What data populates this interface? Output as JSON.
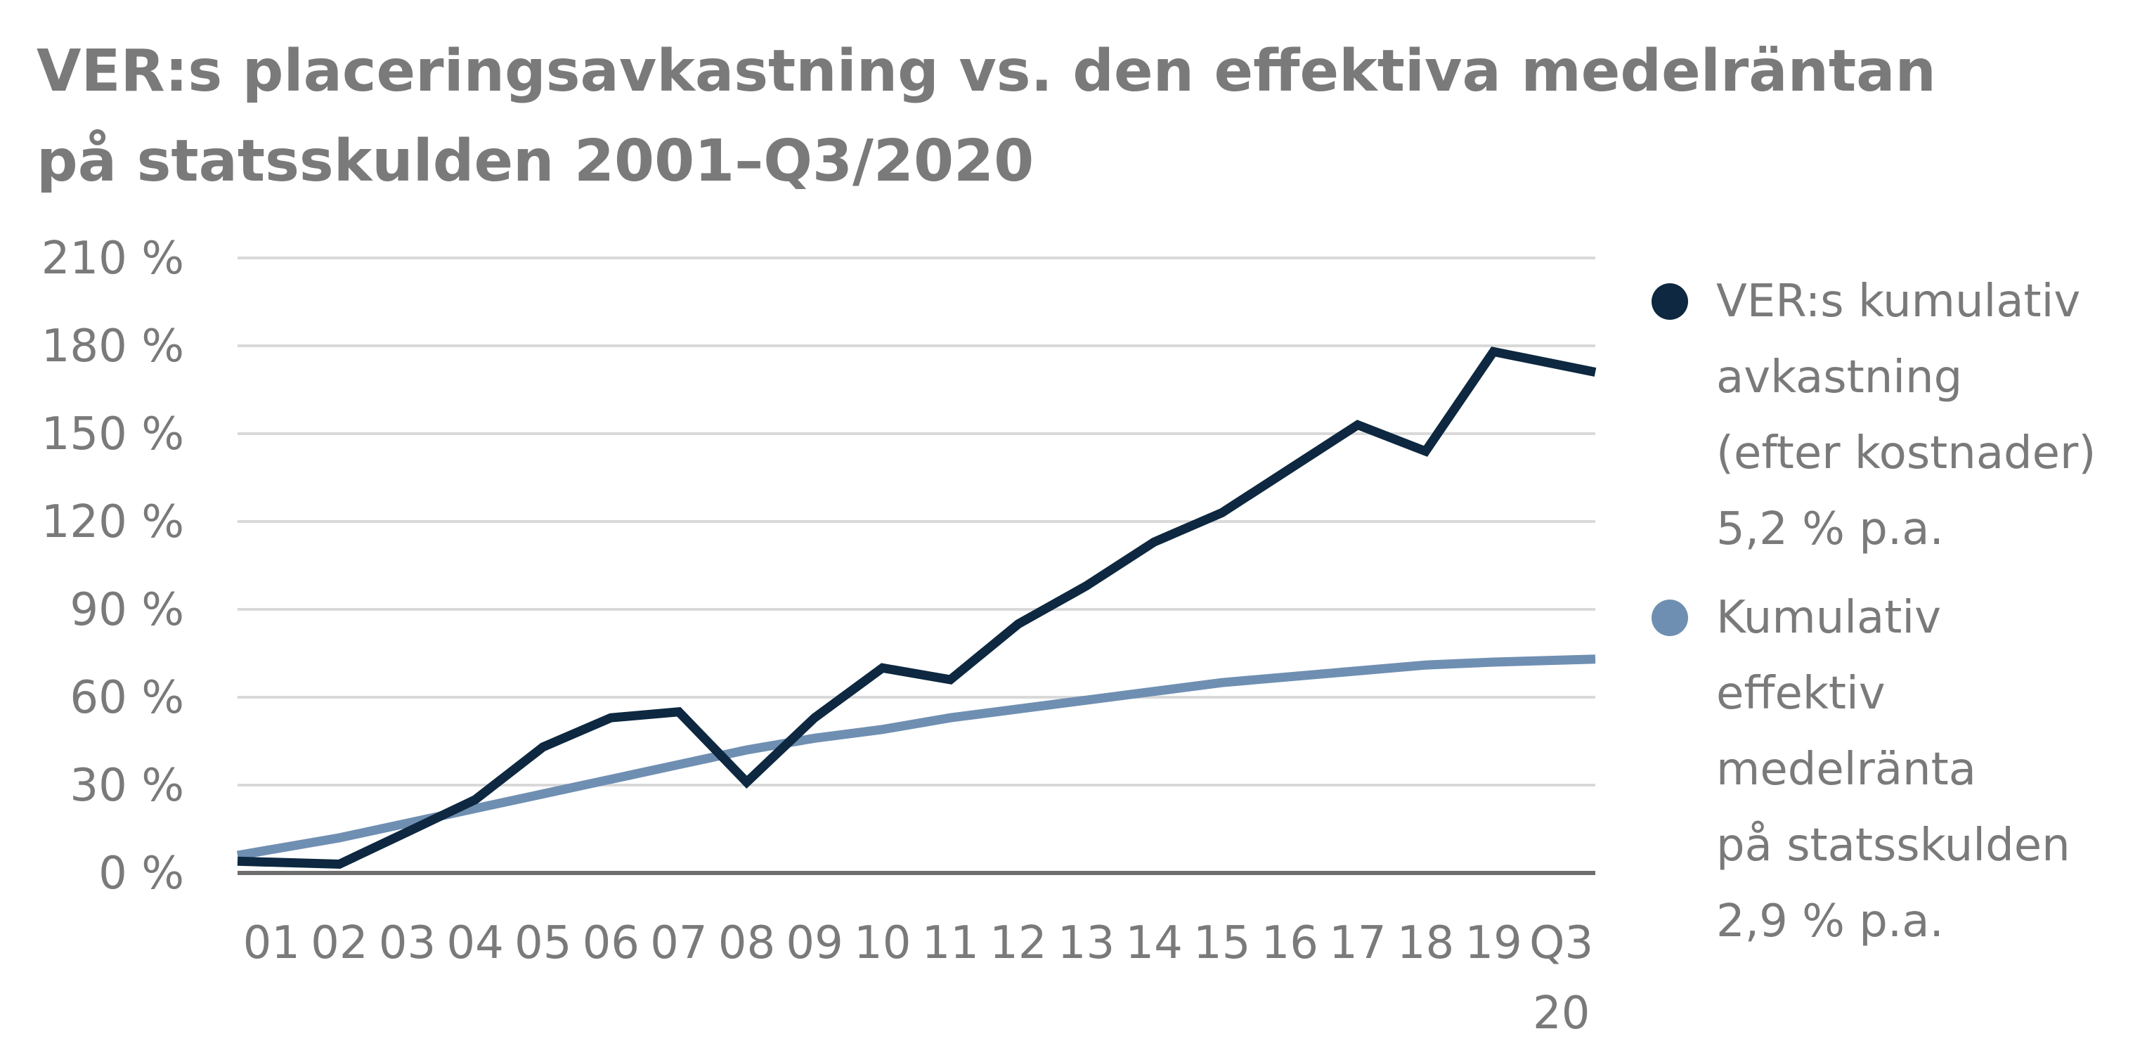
{
  "title_lines": [
    "VER:s placeringsavkastning vs. den effektiva medelräntan",
    "på statsskulden 2001–Q3/2020"
  ],
  "chart_data": {
    "type": "line",
    "title": "VER:s placeringsavkastning vs. den effektiva medelräntan på statsskulden 2001–Q3/2020",
    "categories": [
      "01",
      "02",
      "03",
      "04",
      "05",
      "06",
      "07",
      "08",
      "09",
      "10",
      "11",
      "12",
      "13",
      "14",
      "15",
      "16",
      "17",
      "18",
      "19",
      "Q3 20"
    ],
    "category_label_lines": [
      [
        "01"
      ],
      [
        "02"
      ],
      [
        "03"
      ],
      [
        "04"
      ],
      [
        "05"
      ],
      [
        "06"
      ],
      [
        "07"
      ],
      [
        "08"
      ],
      [
        "09"
      ],
      [
        "10"
      ],
      [
        "11"
      ],
      [
        "12"
      ],
      [
        "13"
      ],
      [
        "14"
      ],
      [
        "15"
      ],
      [
        "16"
      ],
      [
        "17"
      ],
      [
        "18"
      ],
      [
        "19"
      ],
      [
        "Q3",
        "20"
      ]
    ],
    "y_ticks": [
      "0 %",
      "30 %",
      "60 %",
      "90 %",
      "120 %",
      "150 %",
      "180 %",
      "210 %"
    ],
    "ylim": [
      0,
      210
    ],
    "grid": true,
    "legend_position": "right",
    "series": [
      {
        "name": "VER:s kumulativ avkastning (efter kostnader) 5,2 % p.a.",
        "legend_lines": [
          "VER:s kumulativ",
          "avkastning",
          "(efter kostnader)",
          "5,2 % p.a."
        ],
        "color": "#0d2840",
        "values": [
          4,
          3,
          14,
          25,
          43,
          53,
          55,
          31,
          53,
          70,
          66,
          85,
          98,
          113,
          123,
          138,
          153,
          144,
          178,
          171
        ]
      },
      {
        "name": "Kumulativ effektiv medelränta på statsskulden 2,9 % p.a.",
        "legend_lines": [
          "Kumulativ",
          "effektiv",
          "medelränta",
          "på statsskulden",
          "2,9 % p.a."
        ],
        "color": "#6f8fb2",
        "values": [
          6,
          12,
          17,
          22,
          27,
          32,
          37,
          42,
          46,
          49,
          53,
          56,
          59,
          62,
          65,
          67,
          69,
          71,
          72,
          73
        ]
      }
    ]
  }
}
